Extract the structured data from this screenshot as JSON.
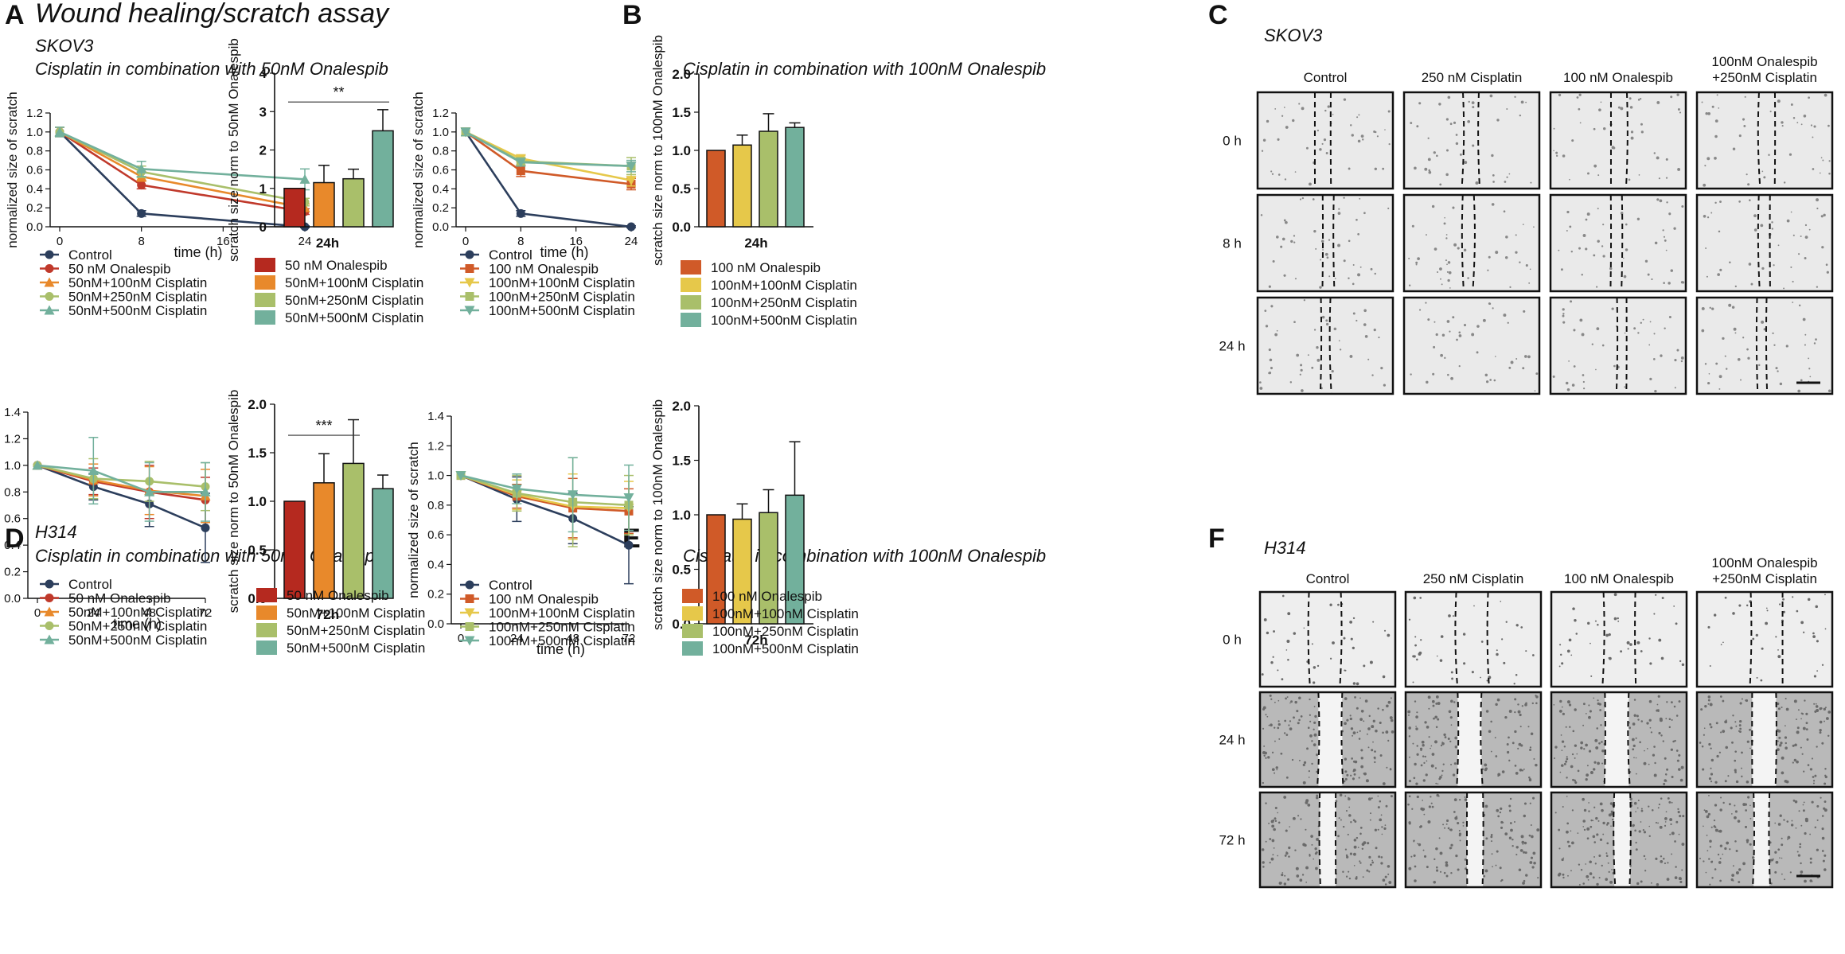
{
  "figure": {
    "title": "Wound healing/scratch assay",
    "colors": {
      "control": "#2c3e5c",
      "onal": "#c0392b",
      "cis100": "#e8892b",
      "cis250": "#a9bf6a",
      "cis500": "#72b09c",
      "onal100": "#d05a28",
      "cis100b": "#e6c84a"
    }
  },
  "panels": {
    "A": {
      "letter": "A",
      "line1": "SKOV3",
      "line2": "Cisplatin in combination with 50nM Onalespib"
    },
    "B": {
      "letter": "B",
      "line2": "Cisplatin in combination with 100nM Onalespib"
    },
    "C": {
      "letter": "C",
      "cell_line": "SKOV3",
      "columns": [
        "Control",
        "250 nM Cisplatin",
        "100 nM Onalespib",
        "100nM Onalespib\n+250nM Cisplatin"
      ],
      "rows": [
        "0 h",
        "8 h",
        "24 h"
      ]
    },
    "D": {
      "letter": "D",
      "line1": "H314",
      "line2": "Cisplatin in combination with 50nM Onalespib"
    },
    "E": {
      "letter": "E",
      "line2": "Cisplatin in combination with 100nM Onalespib"
    },
    "F": {
      "letter": "F",
      "cell_line": "H314",
      "columns": [
        "Control",
        "250 nM Cisplatin",
        "100 nM Onalespib",
        "100nM Onalespib\n+250nM Cisplatin"
      ],
      "rows": [
        "0 h",
        "24 h",
        "72 h"
      ]
    }
  },
  "chart_data": [
    {
      "id": "A-line",
      "type": "line",
      "xlabel": "time (h)",
      "ylabel": "normalized size of scratch",
      "x": [
        0,
        8,
        24
      ],
      "xticks": [
        0,
        8,
        16,
        24
      ],
      "xlim": [
        0,
        24
      ],
      "ylim": [
        0,
        1.2
      ],
      "yticks": [
        0.0,
        0.2,
        0.4,
        0.6,
        0.8,
        1.0,
        1.2
      ],
      "series": [
        {
          "name": "Control",
          "color": "#2c3e5c",
          "marker": "circle",
          "values": [
            1.0,
            0.14,
            0.0
          ],
          "err": [
            0.05,
            0.03,
            0.01
          ]
        },
        {
          "name": "50 nM Onalespib",
          "color": "#c0392b",
          "marker": "circle",
          "values": [
            1.0,
            0.44,
            0.16
          ],
          "err": [
            0.05,
            0.04,
            0.03
          ]
        },
        {
          "name": "50nM+100nM Cisplatin",
          "color": "#e8892b",
          "marker": "triangle",
          "values": [
            1.0,
            0.53,
            0.2
          ],
          "err": [
            0.05,
            0.05,
            0.04
          ]
        },
        {
          "name": "50nM+250nM Cisplatin",
          "color": "#a9bf6a",
          "marker": "circle",
          "values": [
            1.0,
            0.58,
            0.26
          ],
          "err": [
            0.05,
            0.06,
            0.04
          ]
        },
        {
          "name": "50nM+500nM Cisplatin",
          "color": "#72b09c",
          "marker": "triangle",
          "values": [
            1.0,
            0.61,
            0.5
          ],
          "err": [
            0.05,
            0.08,
            0.11
          ]
        }
      ]
    },
    {
      "id": "A-bar",
      "type": "bar",
      "xlabel": "24h",
      "ylabel": "scratch size norm to 50nM Onalespib",
      "ylim": [
        0,
        4
      ],
      "yticks": [
        0,
        1,
        2,
        3,
        4
      ],
      "categories": [
        "50 nM Onalespib",
        "50nM+100nM Cisplatin",
        "50nM+250nM Cisplatin",
        "50nM+500nM Cisplatin"
      ],
      "values": [
        1.0,
        1.15,
        1.25,
        2.5
      ],
      "err": [
        0,
        0.45,
        0.25,
        0.55
      ],
      "colors": [
        "#b5291f",
        "#e8892b",
        "#a9bf6a",
        "#72b09c"
      ],
      "sig": {
        "label": "**",
        "from": 0,
        "to": 3,
        "y": 3.25
      }
    },
    {
      "id": "B-line",
      "type": "line",
      "xlabel": "time (h)",
      "ylabel": "normalized size of scratch",
      "x": [
        0,
        8,
        24
      ],
      "xticks": [
        0,
        8,
        16,
        24
      ],
      "xlim": [
        0,
        24
      ],
      "ylim": [
        0,
        1.2
      ],
      "yticks": [
        0.0,
        0.2,
        0.4,
        0.6,
        0.8,
        1.0,
        1.2
      ],
      "series": [
        {
          "name": "Control",
          "color": "#2c3e5c",
          "marker": "circle",
          "values": [
            1.0,
            0.14,
            0.0
          ],
          "err": [
            0.04,
            0.03,
            0.01
          ]
        },
        {
          "name": "100 nM Onalespib",
          "color": "#d05a28",
          "marker": "square",
          "values": [
            1.0,
            0.59,
            0.45
          ],
          "err": [
            0.04,
            0.06,
            0.06
          ]
        },
        {
          "name": "100nM+100nM Cisplatin",
          "color": "#e6c84a",
          "marker": "triangle-down",
          "values": [
            1.0,
            0.72,
            0.49
          ],
          "err": [
            0.04,
            0.03,
            0.06
          ]
        },
        {
          "name": "100nM+250nM Cisplatin",
          "color": "#a9bf6a",
          "marker": "square",
          "values": [
            1.0,
            0.69,
            0.64
          ],
          "err": [
            0.04,
            0.04,
            0.09
          ]
        },
        {
          "name": "100nM+500nM Cisplatin",
          "color": "#72b09c",
          "marker": "triangle-down",
          "values": [
            1.0,
            0.68,
            0.64
          ],
          "err": [
            0.04,
            0.04,
            0.06
          ]
        }
      ]
    },
    {
      "id": "B-bar",
      "type": "bar",
      "xlabel": "24h",
      "ylabel": "scratch size norm to 100nM Onalespib",
      "ylim": [
        0,
        2.0
      ],
      "yticks": [
        0.0,
        0.5,
        1.0,
        1.5,
        2.0
      ],
      "categories": [
        "100 nM Onalespib",
        "100nM+100nM Cisplatin",
        "100nM+250nM Cisplatin",
        "100nM+500nM Cisplatin"
      ],
      "values": [
        1.0,
        1.07,
        1.25,
        1.3
      ],
      "err": [
        0,
        0.13,
        0.23,
        0.06
      ],
      "colors": [
        "#d05a28",
        "#e6c84a",
        "#a9bf6a",
        "#72b09c"
      ]
    },
    {
      "id": "D-line",
      "type": "line",
      "xlabel": "time (h)",
      "ylabel": "normalized size of scratch",
      "x": [
        0,
        24,
        48,
        72
      ],
      "xticks": [
        0,
        24,
        48,
        72
      ],
      "xlim": [
        0,
        72
      ],
      "ylim": [
        0,
        1.4
      ],
      "yticks": [
        0.0,
        0.2,
        0.4,
        0.6,
        0.8,
        1.0,
        1.2,
        1.4
      ],
      "series": [
        {
          "name": "Control",
          "color": "#2c3e5c",
          "marker": "circle",
          "values": [
            1.0,
            0.84,
            0.71,
            0.53
          ],
          "err": [
            0.0,
            0.1,
            0.17,
            0.26
          ]
        },
        {
          "name": "50 nM Onalespib",
          "color": "#c0392b",
          "marker": "circle",
          "values": [
            1.0,
            0.88,
            0.8,
            0.74
          ],
          "err": [
            0.0,
            0.1,
            0.2,
            0.17
          ]
        },
        {
          "name": "50nM+100nM Cisplatin",
          "color": "#e8892b",
          "marker": "triangle",
          "values": [
            1.0,
            0.89,
            0.81,
            0.77
          ],
          "err": [
            0.0,
            0.12,
            0.18,
            0.2
          ]
        },
        {
          "name": "50nM+250nM Cisplatin",
          "color": "#a9bf6a",
          "marker": "circle",
          "values": [
            1.0,
            0.9,
            0.88,
            0.84
          ],
          "err": [
            0.0,
            0.15,
            0.15,
            0.18
          ]
        },
        {
          "name": "50nM+500nM Cisplatin",
          "color": "#72b09c",
          "marker": "triangle",
          "values": [
            1.0,
            0.96,
            0.8,
            0.8
          ],
          "err": [
            0.0,
            0.25,
            0.22,
            0.22
          ]
        }
      ]
    },
    {
      "id": "D-bar",
      "type": "bar",
      "xlabel": "72h",
      "ylabel": "scratch size norm to 50nM Onalespib",
      "ylim": [
        0,
        2.0
      ],
      "yticks": [
        0.0,
        0.5,
        1.0,
        1.5,
        2.0
      ],
      "categories": [
        "50 nM Onalespib",
        "50nM+100nM Cisplatin",
        "50nM+250nM Cisplatin",
        "50nM+500nM Cisplatin"
      ],
      "values": [
        1.0,
        1.19,
        1.39,
        1.13
      ],
      "err": [
        0,
        0.3,
        0.45,
        0.14
      ],
      "colors": [
        "#b5291f",
        "#e8892b",
        "#a9bf6a",
        "#72b09c"
      ],
      "sig": {
        "label": "***",
        "from": 0,
        "to": 2,
        "y": 1.68
      }
    },
    {
      "id": "E-line",
      "type": "line",
      "xlabel": "time (h)",
      "ylabel": "normalized size of scratch",
      "x": [
        0,
        24,
        48,
        72
      ],
      "xticks": [
        0,
        24,
        48,
        72
      ],
      "xlim": [
        0,
        72
      ],
      "ylim": [
        0,
        1.4
      ],
      "yticks": [
        0.0,
        0.2,
        0.4,
        0.6,
        0.8,
        1.0,
        1.2,
        1.4
      ],
      "series": [
        {
          "name": "Control",
          "color": "#2c3e5c",
          "marker": "circle",
          "values": [
            1.0,
            0.84,
            0.71,
            0.53
          ],
          "err": [
            0.0,
            0.15,
            0.17,
            0.26
          ]
        },
        {
          "name": "100 nM Onalespib",
          "color": "#d05a28",
          "marker": "square",
          "values": [
            1.0,
            0.86,
            0.78,
            0.76
          ],
          "err": [
            0.0,
            0.08,
            0.2,
            0.15
          ]
        },
        {
          "name": "100nM+100nM Cisplatin",
          "color": "#e6c84a",
          "marker": "triangle-down",
          "values": [
            1.0,
            0.87,
            0.79,
            0.78
          ],
          "err": [
            0.0,
            0.1,
            0.22,
            0.18
          ]
        },
        {
          "name": "100nM+250nM Cisplatin",
          "color": "#a9bf6a",
          "marker": "square",
          "values": [
            1.0,
            0.88,
            0.82,
            0.8
          ],
          "err": [
            0.0,
            0.12,
            0.3,
            0.2
          ]
        },
        {
          "name": "100nM+500nM Cisplatin",
          "color": "#72b09c",
          "marker": "triangle-down",
          "values": [
            1.0,
            0.91,
            0.87,
            0.85
          ],
          "err": [
            0.0,
            0.1,
            0.25,
            0.22
          ]
        }
      ]
    },
    {
      "id": "E-bar",
      "type": "bar",
      "xlabel": "72h",
      "ylabel": "scratch size norm to 100nM Onalespib",
      "ylim": [
        0,
        2.0
      ],
      "yticks": [
        0.0,
        0.5,
        1.0,
        1.5,
        2.0
      ],
      "categories": [
        "100 nM Onalespib",
        "100nM+100nM Cisplatin",
        "100nM+250nM Cisplatin",
        "100nM+500nM Cisplatin"
      ],
      "values": [
        1.0,
        0.96,
        1.02,
        1.18
      ],
      "err": [
        0,
        0.14,
        0.21,
        0.49
      ],
      "colors": [
        "#d05a28",
        "#e6c84a",
        "#a9bf6a",
        "#72b09c"
      ]
    }
  ]
}
